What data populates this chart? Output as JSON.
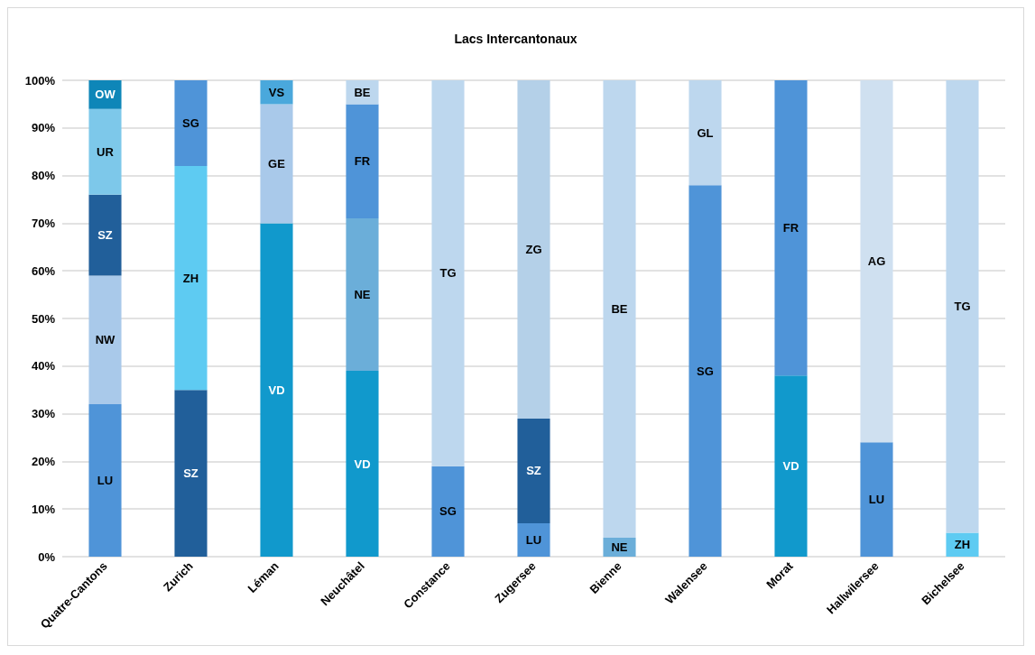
{
  "chart_data": {
    "type": "bar",
    "title": "Lacs Intercantonaux",
    "stacked": true,
    "legend": false,
    "grid": "y",
    "categories": [
      "Quatre-Cantons",
      "Zurich",
      "Léman",
      "Neuchâtel",
      "Constance",
      "Zugersee",
      "Bienne",
      "Walensee",
      "Morat",
      "Hallwilersee",
      "Bichelsee"
    ],
    "ylim": [
      0,
      100
    ],
    "yticks": [
      {
        "value": 0,
        "label": "0%"
      },
      {
        "value": 10,
        "label": "10%"
      },
      {
        "value": 20,
        "label": "20%"
      },
      {
        "value": 30,
        "label": "30%"
      },
      {
        "value": 40,
        "label": "40%"
      },
      {
        "value": 50,
        "label": "50%"
      },
      {
        "value": 60,
        "label": "60%"
      },
      {
        "value": 70,
        "label": "70%"
      },
      {
        "value": 80,
        "label": "80%"
      },
      {
        "value": 90,
        "label": "90%"
      },
      {
        "value": 100,
        "label": "100%"
      }
    ],
    "series": [
      {
        "name": "LU",
        "color": "#4f94d8",
        "values": [
          32,
          null,
          null,
          null,
          null,
          7,
          null,
          null,
          null,
          24,
          null
        ]
      },
      {
        "name": "NW",
        "color": "#a9c9ea",
        "values": [
          27,
          null,
          null,
          null,
          null,
          null,
          null,
          null,
          null,
          null,
          null
        ]
      },
      {
        "name": "SZ",
        "color": "#215f9a",
        "values": [
          17,
          35,
          null,
          null,
          null,
          22,
          null,
          null,
          null,
          null,
          null
        ]
      },
      {
        "name": "UR",
        "color": "#7dc8ea",
        "values": [
          18,
          null,
          null,
          null,
          null,
          null,
          null,
          null,
          null,
          null,
          null
        ]
      },
      {
        "name": "OW",
        "color": "#0e86b8",
        "values": [
          6,
          null,
          null,
          null,
          null,
          null,
          null,
          null,
          null,
          null,
          null
        ]
      },
      {
        "name": "ZH",
        "color": "#5ecbf2",
        "values": [
          null,
          47,
          null,
          null,
          null,
          null,
          null,
          null,
          null,
          null,
          5
        ]
      },
      {
        "name": "SG",
        "color": "#4f94d8",
        "values": [
          null,
          18,
          null,
          null,
          19,
          null,
          null,
          78,
          null,
          null,
          null
        ]
      },
      {
        "name": "TG",
        "color": "#bdd7ee",
        "values": [
          null,
          null,
          null,
          null,
          81,
          null,
          null,
          null,
          null,
          null,
          95
        ]
      },
      {
        "name": "GL",
        "color": "#bdd7ee",
        "values": [
          null,
          null,
          null,
          null,
          null,
          null,
          null,
          22,
          null,
          null,
          null
        ]
      },
      {
        "name": "VD",
        "color": "#1199cc",
        "values": [
          null,
          null,
          70,
          39,
          null,
          null,
          null,
          null,
          38,
          null,
          null
        ]
      },
      {
        "name": "NE",
        "color": "#6baed9",
        "values": [
          null,
          null,
          null,
          32,
          null,
          null,
          4,
          null,
          null,
          null,
          null
        ]
      },
      {
        "name": "FR",
        "color": "#4f94d8",
        "values": [
          null,
          null,
          null,
          24,
          null,
          null,
          null,
          null,
          62,
          null,
          null
        ]
      },
      {
        "name": "BE",
        "color": "#bdd7ee",
        "values": [
          null,
          null,
          null,
          5,
          null,
          null,
          96,
          null,
          null,
          null,
          null
        ]
      },
      {
        "name": "GE",
        "color": "#a9c9ea",
        "values": [
          null,
          null,
          25,
          null,
          null,
          null,
          null,
          null,
          null,
          null,
          null
        ]
      },
      {
        "name": "VS",
        "color": "#4aa8dc",
        "values": [
          null,
          null,
          5,
          null,
          null,
          null,
          null,
          null,
          null,
          null,
          null
        ]
      },
      {
        "name": "ZG",
        "color": "#b4d0e8",
        "values": [
          null,
          null,
          null,
          null,
          null,
          71,
          null,
          null,
          null,
          null,
          null
        ]
      },
      {
        "name": "AG",
        "color": "#cfe0f0",
        "values": [
          null,
          null,
          null,
          null,
          null,
          null,
          null,
          null,
          null,
          76,
          null
        ]
      }
    ]
  }
}
